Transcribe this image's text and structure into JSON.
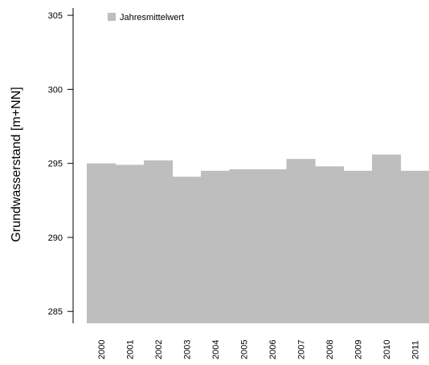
{
  "chart_data": {
    "type": "bar",
    "categories": [
      "2000",
      "2001",
      "2002",
      "2003",
      "2004",
      "2005",
      "2006",
      "2007",
      "2008",
      "2009",
      "2010",
      "2011"
    ],
    "series": [
      {
        "name": "Jahresmittelwert",
        "values": [
          295.0,
          294.9,
          295.2,
          294.1,
          294.5,
          294.6,
          294.6,
          295.3,
          294.8,
          294.5,
          295.6,
          294.5
        ]
      }
    ],
    "xlabel": "",
    "ylabel": "Grundwasserstand [m+NN]",
    "ylim": [
      284.2,
      305.6
    ],
    "yticks": [
      285,
      290,
      295,
      300,
      305
    ],
    "grid": false,
    "legend_position": "top-left",
    "colors": {
      "bar": "#bebebe",
      "axis": "#000000"
    }
  }
}
